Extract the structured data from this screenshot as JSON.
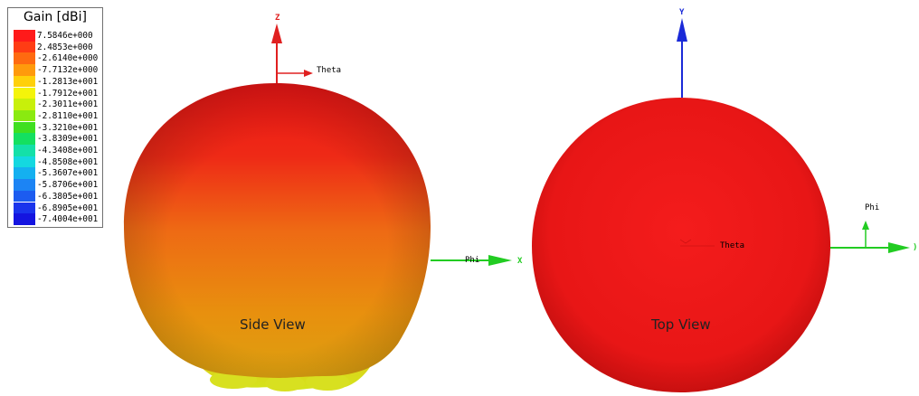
{
  "legend": {
    "title": "Gain [dBi]",
    "entries": [
      {
        "value": "7.5846e+000",
        "color": "#ff1a1a"
      },
      {
        "value": "2.4853e+000",
        "color": "#ff3c14"
      },
      {
        "value": "-2.6140e+000",
        "color": "#ff6a10"
      },
      {
        "value": "-7.7132e+000",
        "color": "#ff9a0c"
      },
      {
        "value": "-1.2813e+001",
        "color": "#ffd00a"
      },
      {
        "value": "-1.7912e+001",
        "color": "#f4f40a"
      },
      {
        "value": "-2.3011e+001",
        "color": "#c8f00a"
      },
      {
        "value": "-2.8110e+001",
        "color": "#8aea10"
      },
      {
        "value": "-3.3210e+001",
        "color": "#3fdf20"
      },
      {
        "value": "-3.8309e+001",
        "color": "#14e060"
      },
      {
        "value": "-4.3408e+001",
        "color": "#14e0a8"
      },
      {
        "value": "-4.8508e+001",
        "color": "#14d8e0"
      },
      {
        "value": "-5.3607e+001",
        "color": "#14b0f0"
      },
      {
        "value": "-5.8706e+001",
        "color": "#1c84f4"
      },
      {
        "value": "-6.3805e+001",
        "color": "#1c5cf0"
      },
      {
        "value": "-6.8905e+001",
        "color": "#1a34ec"
      },
      {
        "value": "-7.4004e+001",
        "color": "#1414e0"
      }
    ]
  },
  "side_view": {
    "label": "Side View",
    "axis_z": "Z",
    "axis_theta": "Theta",
    "axis_phi": "Phi",
    "axis_x": "X"
  },
  "top_view": {
    "label": "Top View",
    "axis_y": "Y",
    "axis_phi": "Phi",
    "axis_theta": "Theta",
    "axis_x": ")"
  },
  "colors": {
    "axis_red": "#e02020",
    "axis_green": "#22cc22",
    "axis_blue": "#1a2ad8",
    "pattern_red": "#ee1a1a",
    "pattern_orange": "#ee8c10",
    "pattern_yellow": "#d8e020"
  }
}
